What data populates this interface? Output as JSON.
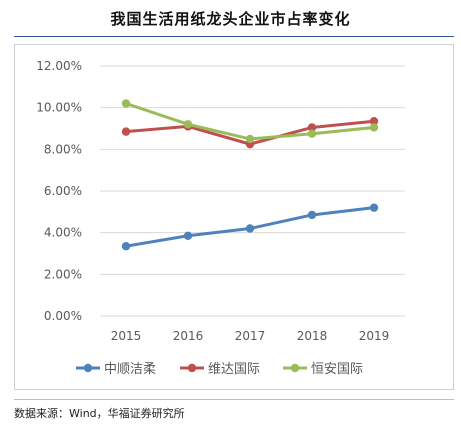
{
  "title": "我国生活用纸龙头企业市占率变化",
  "source": "数据来源：Wind，华福证券研究所",
  "chart_data": {
    "type": "line",
    "title": "我国生活用纸龙头企业市占率变化",
    "categories": [
      "2015",
      "2016",
      "2017",
      "2018",
      "2019"
    ],
    "ylim": [
      0,
      12
    ],
    "yticks": [
      "0.00%",
      "2.00%",
      "4.00%",
      "6.00%",
      "8.00%",
      "10.00%",
      "12.00%"
    ],
    "grid": true,
    "legend": "bottom",
    "series": [
      {
        "name": "中顺洁柔",
        "color": "#4f81bd",
        "values": [
          3.35,
          3.85,
          4.2,
          4.85,
          5.2
        ]
      },
      {
        "name": "维达国际",
        "color": "#c0504d",
        "values": [
          8.85,
          9.1,
          8.25,
          9.05,
          9.35
        ]
      },
      {
        "name": "恒安国际",
        "color": "#9bbb59",
        "values": [
          10.2,
          9.2,
          8.5,
          8.75,
          9.05
        ]
      }
    ]
  }
}
